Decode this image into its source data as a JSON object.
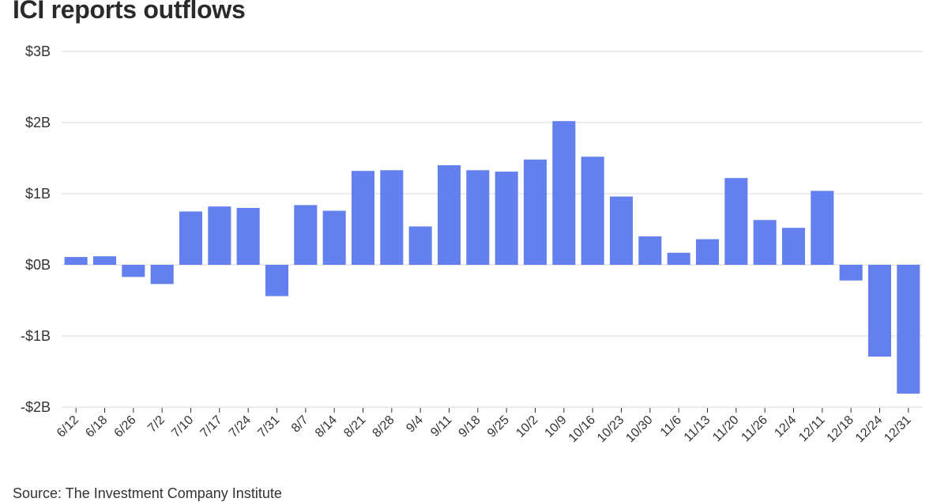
{
  "header": {
    "title": "ICI reports outflows"
  },
  "footer": {
    "source": "Source: The Investment Company Institute"
  },
  "chart_data": {
    "type": "bar",
    "title": "ICI reports outflows",
    "xlabel": "",
    "ylabel": "",
    "ylim": [
      -2,
      3
    ],
    "yticks": [
      3,
      2,
      1,
      0,
      -1,
      -2
    ],
    "ytick_labels": [
      "$3B",
      "$2B",
      "$1B",
      "$0B",
      "-$1B",
      "-$2B"
    ],
    "grid": true,
    "bar_color": "#6480ee",
    "categories": [
      "6/12",
      "6/18",
      "6/26",
      "7/2",
      "7/10",
      "7/17",
      "7/24",
      "7/31",
      "8/7",
      "8/14",
      "8/21",
      "8/28",
      "9/4",
      "9/11",
      "9/18",
      "9/25",
      "10/2",
      "10/9",
      "10/16",
      "10/23",
      "10/30",
      "11/6",
      "11/13",
      "11/20",
      "11/26",
      "12/4",
      "12/11",
      "12/18",
      "12/24",
      "12/31"
    ],
    "values": [
      0.11,
      0.12,
      -0.17,
      -0.27,
      0.75,
      0.82,
      0.8,
      -0.44,
      0.84,
      0.76,
      1.32,
      1.33,
      0.54,
      1.4,
      1.33,
      1.31,
      1.48,
      2.02,
      1.52,
      0.96,
      0.4,
      0.17,
      0.36,
      1.22,
      0.63,
      0.52,
      1.04,
      -0.22,
      -1.29,
      -1.81
    ]
  }
}
